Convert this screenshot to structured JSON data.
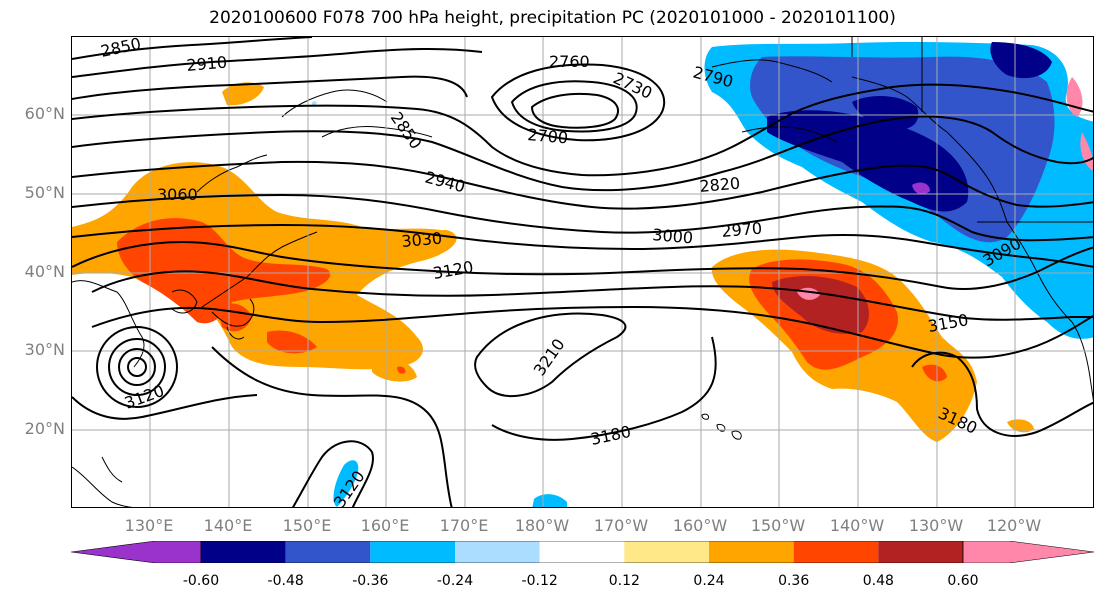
{
  "title": "2020100600 F078 700 hPa height, precipitation PC (2020101000 - 2020101100)",
  "lat_labels": [
    "60°N",
    "50°N",
    "40°N",
    "30°N",
    "20°N"
  ],
  "lon_labels": [
    "130°E",
    "140°E",
    "150°E",
    "160°E",
    "170°E",
    "180°W",
    "170°W",
    "160°W",
    "150°W",
    "140°W",
    "130°W",
    "120°W"
  ],
  "contour_labels": [
    "2850",
    "2910",
    "2760",
    "2730",
    "2790",
    "2700",
    "2850",
    "2940",
    "2820",
    "3060",
    "3030",
    "3000",
    "2970",
    "3120",
    "3090",
    "3150",
    "3210",
    "3180",
    "3180",
    "3120",
    "3120"
  ],
  "colorbar": {
    "ticks": [
      "-0.60",
      "-0.48",
      "-0.36",
      "-0.24",
      "-0.12",
      "0.12",
      "0.24",
      "0.36",
      "0.48",
      "0.60"
    ],
    "colors": [
      "#9933cc",
      "#000088",
      "#3355cc",
      "#00bbff",
      "#aaddff",
      "#ffffff",
      "#ffe888",
      "#ffa500",
      "#ff4500",
      "#b22222",
      "#ff88aa",
      "#ff88aa"
    ]
  },
  "colors": {
    "pos_low": "#ffe888",
    "pos_mid": "#ffa500",
    "pos_high": "#ff4500",
    "pos_top": "#b22222",
    "pos_max": "#ff88aa",
    "neg_low": "#aaddff",
    "neg_mid": "#00bbff",
    "neg_high": "#3355cc",
    "neg_top": "#000088",
    "neg_max": "#9933cc"
  }
}
